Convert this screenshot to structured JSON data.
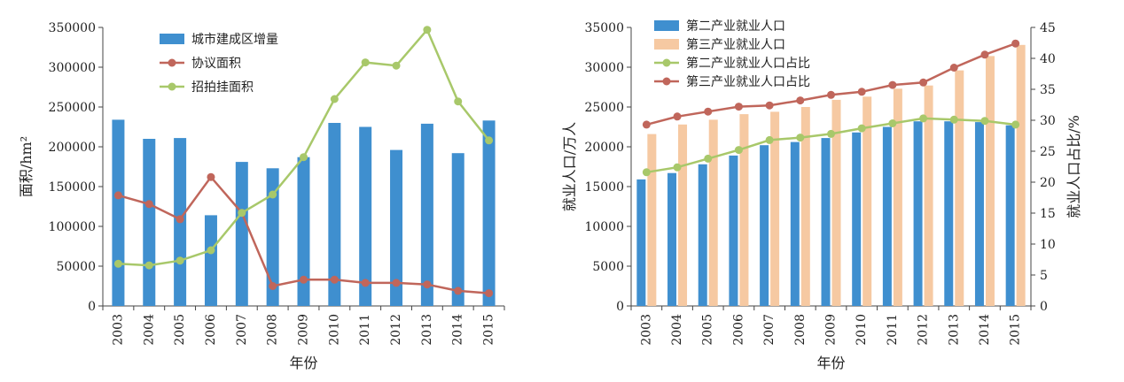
{
  "chart_data": [
    {
      "type": "bar",
      "categories": [
        "2003",
        "2004",
        "2005",
        "2006",
        "2007",
        "2008",
        "2009",
        "2010",
        "2011",
        "2012",
        "2013",
        "2014",
        "2015"
      ],
      "series": [
        {
          "name": "城市建成区增量",
          "type": "bar",
          "color": "#3f8fcf",
          "values": [
            234000,
            210000,
            211000,
            114000,
            181000,
            173000,
            187000,
            230000,
            225000,
            196000,
            229000,
            192000,
            233000
          ]
        },
        {
          "name": "协议面积",
          "type": "line",
          "color": "#c0665b",
          "values": [
            139000,
            128000,
            109000,
            162000,
            117000,
            25000,
            33000,
            33000,
            29000,
            29000,
            27000,
            19000,
            16000
          ]
        },
        {
          "name": "招拍挂面积",
          "type": "line",
          "color": "#a8c86a",
          "values": [
            53000,
            51000,
            57000,
            70000,
            117000,
            140000,
            187000,
            260000,
            306000,
            302000,
            347000,
            257000,
            208000
          ]
        }
      ],
      "xlabel": "年份",
      "ylabel": "面积/hm²",
      "ylim": [
        0,
        350000
      ],
      "yticks": [
        "0",
        "50000",
        "100000",
        "150000",
        "200000",
        "250000",
        "300000",
        "350000"
      ],
      "legend": "top-center"
    },
    {
      "type": "bar",
      "categories": [
        "2003",
        "2004",
        "2005",
        "2006",
        "2007",
        "2008",
        "2009",
        "2010",
        "2011",
        "2012",
        "2013",
        "2014",
        "2015"
      ],
      "series": [
        {
          "name": "第二产业就业人口",
          "type": "bar",
          "axis": "left",
          "color": "#3f8fcf",
          "values": [
            15900,
            16700,
            17800,
            18900,
            20200,
            20600,
            21100,
            21800,
            22500,
            23200,
            23200,
            23100,
            22700
          ]
        },
        {
          "name": "第三产业就业人口",
          "type": "bar",
          "axis": "left",
          "color": "#f6c9a2",
          "values": [
            21600,
            22800,
            23400,
            24100,
            24400,
            25000,
            25900,
            26300,
            27300,
            27700,
            29600,
            31400,
            32800
          ]
        },
        {
          "name": "第二产业就业人口占比",
          "type": "line",
          "axis": "right",
          "color": "#a8c86a",
          "values": [
            21.6,
            22.4,
            23.8,
            25.2,
            26.8,
            27.2,
            27.8,
            28.7,
            29.5,
            30.3,
            30.1,
            29.9,
            29.3
          ]
        },
        {
          "name": "第三产业就业人口占比",
          "type": "line",
          "axis": "right",
          "color": "#c0665b",
          "values": [
            29.3,
            30.6,
            31.4,
            32.2,
            32.4,
            33.2,
            34.1,
            34.6,
            35.7,
            36.1,
            38.5,
            40.6,
            42.4
          ]
        }
      ],
      "xlabel": "年份",
      "ylabel": "就业人口/万人",
      "ylabel_right": "就业人口占比/%",
      "ylim": [
        0,
        35000
      ],
      "ylim_right": [
        0,
        45
      ],
      "yticks": [
        "0",
        "5000",
        "10000",
        "15000",
        "20000",
        "25000",
        "30000",
        "35000"
      ],
      "yticks_right": [
        "0",
        "5",
        "10",
        "15",
        "20",
        "25",
        "30",
        "35",
        "40",
        "45"
      ],
      "legend": "top-left"
    }
  ]
}
